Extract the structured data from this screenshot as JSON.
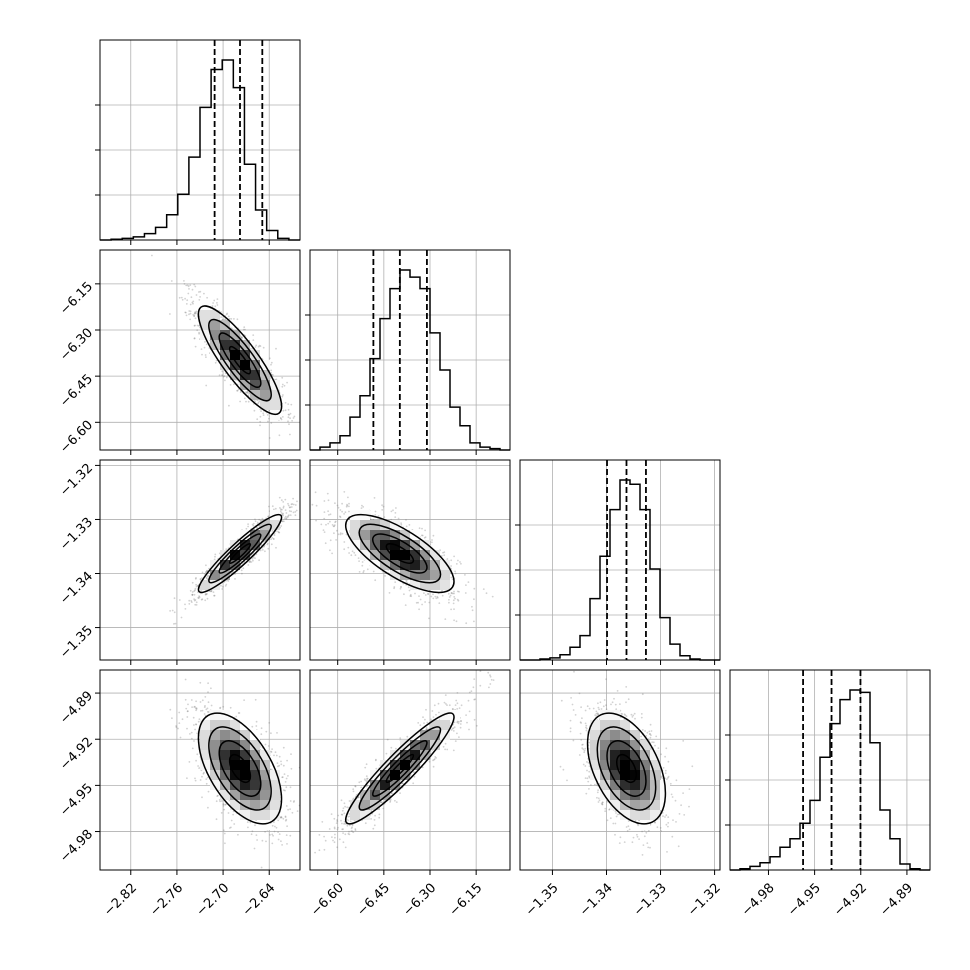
{
  "chart_data": {
    "type": "corner",
    "parameters": 4,
    "colors": {
      "line": "#000000",
      "grid": "#b0b0b0",
      "scatter": "#7f7f7f"
    },
    "grid": true,
    "axis_ranges": [
      [
        -2.86,
        -2.6
      ],
      [
        -6.69,
        -6.04
      ],
      [
        -1.356,
        -1.319
      ],
      [
        -5.005,
        -4.875
      ]
    ],
    "x_tick_labels": [
      [
        "−2.82",
        "−2.76",
        "−2.70",
        "−2.64"
      ],
      [
        "−6.60",
        "−6.45",
        "−6.30",
        "−6.15"
      ],
      [
        "−1.35",
        "−1.34",
        "−1.33",
        "−1.32"
      ],
      [
        "−4.98",
        "−4.95",
        "−4.92",
        "−4.89"
      ]
    ],
    "x_tick_values": [
      [
        -2.82,
        -2.76,
        -2.7,
        -2.64
      ],
      [
        -6.6,
        -6.45,
        -6.3,
        -6.15
      ],
      [
        -1.35,
        -1.34,
        -1.33,
        -1.32
      ],
      [
        -4.98,
        -4.95,
        -4.92,
        -4.89
      ]
    ],
    "y_tick_labels": [
      null,
      [
        "−6.15",
        "−6.30",
        "−6.45",
        "−6.60"
      ],
      [
        "−1.32",
        "−1.33",
        "−1.34",
        "−1.35"
      ],
      [
        "−4.89",
        "−4.92",
        "−4.95",
        "−4.98"
      ]
    ],
    "y_tick_values": [
      null,
      [
        -6.15,
        -6.3,
        -6.45,
        -6.6
      ],
      [
        -1.32,
        -1.33,
        -1.34,
        -1.35
      ],
      [
        -4.89,
        -4.92,
        -4.95,
        -4.98
      ]
    ],
    "quantiles": [
      [
        -2.711,
        -2.678,
        -2.649
      ],
      [
        -6.484,
        -6.398,
        -6.31
      ],
      [
        -1.3399,
        -1.3363,
        -1.3327
      ],
      [
        -4.9575,
        -4.939,
        -4.9202
      ]
    ],
    "histograms": [
      [
        0,
        1,
        2,
        4,
        8,
        16,
        32,
        58,
        105,
        168,
        216,
        228,
        193,
        96,
        38,
        12,
        2,
        0
      ],
      [
        0,
        2,
        5,
        10,
        23,
        38,
        64,
        92,
        113,
        126,
        121,
        113,
        82,
        56,
        30,
        17,
        5,
        2,
        1,
        0
      ],
      [
        0,
        0,
        1,
        2,
        5,
        12,
        23,
        58,
        98,
        142,
        170,
        166,
        142,
        86,
        40,
        15,
        4,
        1,
        0,
        0
      ],
      [
        0,
        1,
        3,
        6,
        11,
        19,
        26,
        39,
        58,
        94,
        122,
        142,
        150,
        148,
        106,
        50,
        26,
        5,
        1,
        0
      ]
    ],
    "pairs": [
      {
        "x": 0,
        "y": 1,
        "mean": [
          -2.678,
          -6.398
        ],
        "sd": [
          0.027,
          0.088
        ],
        "rho": -0.85
      },
      {
        "x": 0,
        "y": 2,
        "mean": [
          -2.678,
          -1.3363
        ],
        "sd": [
          0.027,
          0.0036
        ],
        "rho": 0.93
      },
      {
        "x": 1,
        "y": 2,
        "mean": [
          -6.398,
          -1.3363
        ],
        "sd": [
          0.088,
          0.0036
        ],
        "rho": -0.72
      },
      {
        "x": 0,
        "y": 3,
        "mean": [
          -2.678,
          -4.939
        ],
        "sd": [
          0.027,
          0.018
        ],
        "rho": -0.55
      },
      {
        "x": 1,
        "y": 3,
        "mean": [
          -6.398,
          -4.939
        ],
        "sd": [
          0.088,
          0.018
        ],
        "rho": 0.93
      },
      {
        "x": 2,
        "y": 3,
        "mean": [
          -1.3363,
          -4.939
        ],
        "sd": [
          0.0036,
          0.018
        ],
        "rho": -0.45
      }
    ]
  }
}
